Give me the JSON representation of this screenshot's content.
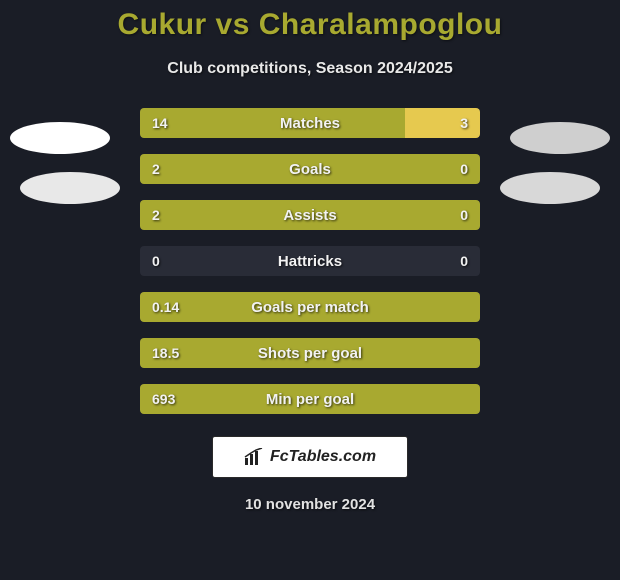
{
  "title": "Cukur vs Charalampoglou",
  "subtitle": "Club competitions, Season 2024/2025",
  "date": "10 november 2024",
  "logo_text": "FcTables.com",
  "background_color": "#1a1d26",
  "title_color": "#a8a930",
  "colors": {
    "player1_bar": "#a8a930",
    "player2_bar": "#e6c94f",
    "bar_bg": "#292c37"
  },
  "bars": [
    {
      "label": "Matches",
      "left_val": "14",
      "right_val": "3",
      "left_pct": 78,
      "right_pct": 22
    },
    {
      "label": "Goals",
      "left_val": "2",
      "right_val": "0",
      "left_pct": 100,
      "right_pct": 0
    },
    {
      "label": "Assists",
      "left_val": "2",
      "right_val": "0",
      "left_pct": 100,
      "right_pct": 0
    },
    {
      "label": "Hattricks",
      "left_val": "0",
      "right_val": "0",
      "left_pct": 0,
      "right_pct": 0
    },
    {
      "label": "Goals per match",
      "left_val": "0.14",
      "right_val": "",
      "left_pct": 100,
      "right_pct": 0
    },
    {
      "label": "Shots per goal",
      "left_val": "18.5",
      "right_val": "",
      "left_pct": 100,
      "right_pct": 0
    },
    {
      "label": "Min per goal",
      "left_val": "693",
      "right_val": "",
      "left_pct": 100,
      "right_pct": 0
    }
  ],
  "ellipses": {
    "e1_color": "#ffffff",
    "e2_color": "#e8e8e8",
    "e3_color": "#cfcfcf",
    "e4_color": "#d8d8d8"
  }
}
